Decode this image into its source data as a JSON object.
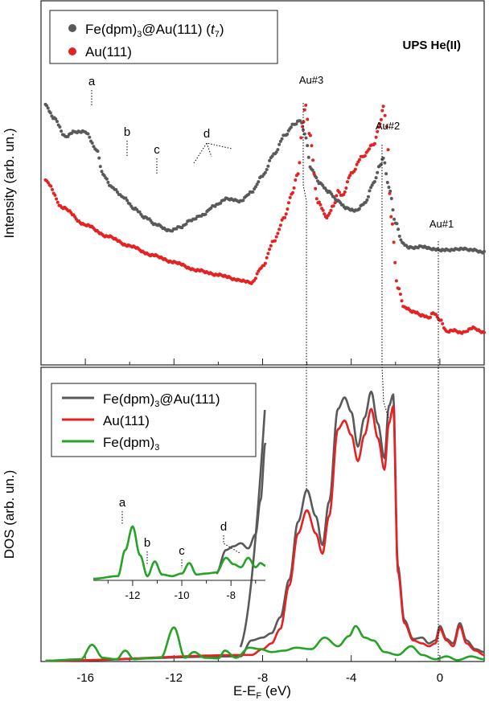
{
  "chart_data": [
    {
      "type": "line",
      "panel": "top",
      "title": "UPS He(II)",
      "ylabel": "Intensity (arb. un.)",
      "xlabel": "",
      "xlim": [
        -18,
        2
      ],
      "x_ticks": [
        -16,
        -12,
        -8,
        -4,
        0
      ],
      "legend_placement": "top-left",
      "grid": false,
      "series": [
        {
          "name": "Fe(dpm)₃@Au(111) (t₇)",
          "color": "#595959",
          "marker": "dot",
          "x": [
            -17.8,
            -17.4,
            -16.9,
            -16.5,
            -16.0,
            -15.5,
            -15.2,
            -14.8,
            -14.3,
            -13.8,
            -13.3,
            -12.8,
            -12.2,
            -11.7,
            -11.2,
            -10.7,
            -10.2,
            -9.6,
            -9.0,
            -8.5,
            -8.0,
            -7.5,
            -7.0,
            -6.6,
            -6.3,
            -6.1,
            -5.8,
            -5.4,
            -5.0,
            -4.6,
            -4.2,
            -3.8,
            -3.4,
            -3.0,
            -2.7,
            -2.55,
            -2.3,
            -2.0,
            -1.7,
            -1.4,
            -1.1,
            -0.8,
            -0.4,
            0.0,
            0.4,
            1.0,
            1.5,
            2.0
          ],
          "y": [
            2.4,
            2.18,
            1.88,
            1.96,
            1.96,
            1.67,
            1.25,
            1.04,
            0.88,
            0.69,
            0.54,
            0.42,
            0.32,
            0.38,
            0.5,
            0.58,
            0.73,
            0.85,
            0.81,
            0.96,
            1.23,
            1.58,
            1.9,
            2.08,
            2.15,
            1.93,
            1.33,
            1.1,
            0.96,
            0.81,
            0.69,
            0.65,
            0.77,
            1.1,
            1.4,
            1.52,
            1.04,
            0.46,
            0.12,
            0.04,
            0.04,
            0.06,
            0.02,
            0.0,
            0.0,
            0.02,
            0.0,
            -0.04
          ]
        },
        {
          "name": "Au(111)",
          "color": "#e52222",
          "marker": "dot",
          "x": [
            -17.8,
            -17.0,
            -16.0,
            -15.0,
            -14.0,
            -13.0,
            -12.0,
            -11.0,
            -10.0,
            -9.0,
            -8.5,
            -8.0,
            -7.5,
            -7.0,
            -6.7,
            -6.4,
            -6.2,
            -6.05,
            -5.9,
            -5.5,
            -5.1,
            -4.8,
            -4.6,
            -4.4,
            -4.0,
            -3.5,
            -3.0,
            -2.7,
            -2.55,
            -2.4,
            -2.2,
            -1.9,
            -1.6,
            -1.2,
            -0.8,
            -0.5,
            -0.3,
            0.0,
            0.3,
            0.6,
            1.0,
            1.5,
            2.0
          ],
          "y": [
            3.0,
            2.55,
            2.27,
            2.08,
            1.92,
            1.77,
            1.65,
            1.52,
            1.44,
            1.35,
            1.31,
            1.58,
            2.0,
            2.4,
            2.77,
            3.12,
            3.9,
            4.25,
            3.8,
            2.65,
            2.4,
            2.58,
            2.83,
            2.75,
            3.12,
            3.4,
            3.6,
            3.93,
            4.25,
            3.9,
            2.4,
            1.23,
            0.9,
            0.83,
            0.77,
            0.73,
            0.81,
            0.7,
            0.5,
            0.52,
            0.48,
            0.56,
            0.48
          ]
        }
      ],
      "annotations": [
        {
          "label": "a",
          "x": -16.0
        },
        {
          "label": "b",
          "x": -14.3
        },
        {
          "label": "c",
          "x": -12.7
        },
        {
          "label": "d",
          "x": -9.4
        },
        {
          "label": "Au#3",
          "x": -6.0
        },
        {
          "label": "Au#2",
          "x": -2.6
        },
        {
          "label": "Au#1",
          "x": 0.0
        }
      ]
    },
    {
      "type": "line",
      "panel": "bottom",
      "xlabel": "E-E_F (eV)",
      "ylabel": "DOS (arb. un.)",
      "xlim": [
        -18,
        2
      ],
      "ylim": [
        0,
        10
      ],
      "x_ticks": [
        -16,
        -12,
        -8,
        -4,
        0
      ],
      "legend_placement": "top-left",
      "grid": false,
      "series": [
        {
          "name": "Fe(dpm)₃@Au(111)",
          "color": "#595959",
          "x": [
            -17.8,
            -9.0,
            -8.5,
            -8.0,
            -7.6,
            -7.2,
            -6.8,
            -6.4,
            -6.0,
            -5.6,
            -5.3,
            -5.0,
            -4.6,
            -4.3,
            -4.0,
            -3.7,
            -3.4,
            -3.1,
            -2.8,
            -2.5,
            -2.3,
            -2.1,
            -1.9,
            -1.6,
            -1.2,
            -0.8,
            -0.5,
            -0.2,
            0.0,
            0.3,
            0.6,
            0.9,
            1.2,
            1.6,
            2.0
          ],
          "y": [
            0.0,
            0.15,
            0.7,
            0.8,
            0.95,
            1.5,
            2.8,
            4.8,
            5.9,
            5.0,
            4.0,
            5.5,
            8.7,
            9.1,
            8.6,
            7.4,
            8.4,
            9.3,
            8.2,
            7.0,
            8.8,
            9.2,
            3.3,
            1.4,
            0.75,
            0.8,
            0.6,
            0.7,
            1.2,
            0.75,
            0.6,
            1.3,
            0.7,
            0.4,
            0.3
          ]
        },
        {
          "name": "Au(111)",
          "color": "#e52222",
          "x": [
            -17.8,
            -8.5,
            -8.0,
            -7.6,
            -7.2,
            -6.8,
            -6.4,
            -6.0,
            -5.6,
            -5.3,
            -5.0,
            -4.6,
            -4.3,
            -4.0,
            -3.7,
            -3.4,
            -3.1,
            -2.8,
            -2.5,
            -2.3,
            -2.1,
            -1.9,
            -1.6,
            -1.2,
            -0.8,
            -0.5,
            -0.2,
            0.0,
            0.3,
            0.6,
            0.9,
            1.2,
            1.6,
            2.0
          ],
          "y": [
            0.0,
            0.2,
            0.4,
            0.6,
            1.1,
            2.6,
            4.4,
            5.2,
            4.4,
            3.7,
            5.0,
            8.0,
            8.3,
            7.8,
            6.9,
            7.8,
            8.7,
            7.7,
            6.6,
            8.2,
            8.8,
            3.1,
            1.3,
            0.7,
            0.6,
            0.5,
            0.6,
            1.1,
            0.7,
            0.5,
            1.2,
            0.6,
            0.35,
            0.2
          ]
        },
        {
          "name": "Fe(dpm)₃",
          "color": "#24a324",
          "x": [
            -17.8,
            -16.2,
            -15.7,
            -15.2,
            -14.6,
            -14.2,
            -13.8,
            -13.3,
            -12.6,
            -12.0,
            -11.5,
            -11.1,
            -10.6,
            -10.0,
            -9.7,
            -9.2,
            -8.6,
            -8.1,
            -7.6,
            -7.0,
            -6.5,
            -5.8,
            -5.2,
            -4.6,
            -4.1,
            -3.8,
            -3.4,
            -3.0,
            -2.5,
            -1.9,
            -1.3,
            -0.8,
            -0.2,
            0.3,
            0.8,
            1.4,
            2.0
          ],
          "y": [
            0.0,
            0.05,
            0.55,
            0.1,
            0.05,
            0.35,
            0.05,
            0.08,
            0.1,
            1.15,
            0.1,
            0.3,
            0.1,
            0.08,
            0.35,
            0.1,
            0.45,
            0.4,
            0.3,
            0.35,
            0.45,
            0.4,
            0.8,
            0.5,
            0.85,
            1.2,
            0.8,
            0.7,
            0.3,
            0.2,
            0.5,
            0.2,
            0.05,
            0.15,
            0.02,
            0.15,
            0.05
          ]
        }
      ],
      "inset": {
        "x_ticks": [
          -12,
          -10,
          -8
        ],
        "xlim": [
          -13.6,
          -6.6
        ],
        "annotations": [
          {
            "label": "a",
            "x": -12.0
          },
          {
            "label": "b",
            "x": -11.1
          },
          {
            "label": "c",
            "x": -9.7
          },
          {
            "label": "d",
            "x": -7.9
          }
        ]
      }
    }
  ]
}
